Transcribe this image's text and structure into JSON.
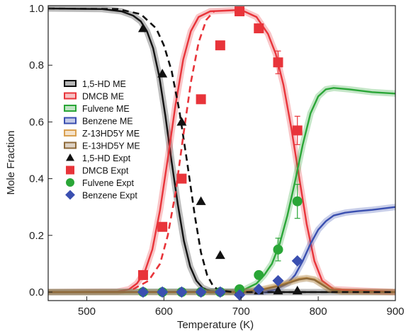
{
  "chart_data": {
    "type": "line",
    "xlabel": "Temperature (K)",
    "ylabel": "Mole Fraction",
    "xlim": [
      450,
      900
    ],
    "ylim": [
      -0.03,
      1.01
    ],
    "xticks": [
      500,
      600,
      700,
      800,
      900
    ],
    "yticks": [
      0.0,
      0.2,
      0.4,
      0.6,
      0.8,
      1.0
    ],
    "xtick_labels": [
      "500",
      "600",
      "700",
      "800",
      "900"
    ],
    "ytick_labels": [
      "0.0",
      "0.2",
      "0.4",
      "0.6",
      "0.8",
      "1.0"
    ],
    "grid": false,
    "legend_position": "left",
    "colors": {
      "hd": "#111111",
      "dmcb": "#e8343a",
      "fulvene": "#2aa637",
      "benzene": "#3a4fb0",
      "z13": "#d9a050",
      "e13": "#8e6a3a"
    },
    "series": [
      {
        "name": "1,5-HD ME",
        "kind": "band",
        "color_key": "hd",
        "x": [
          450,
          520,
          545,
          560,
          570,
          578,
          586,
          594,
          602,
          610,
          618,
          626,
          634,
          642,
          650,
          660,
          680,
          900
        ],
        "y": [
          1.0,
          0.998,
          0.99,
          0.975,
          0.955,
          0.92,
          0.86,
          0.76,
          0.62,
          0.46,
          0.31,
          0.18,
          0.09,
          0.04,
          0.015,
          0.004,
          0.0,
          0.0
        ]
      },
      {
        "name": "1,5-HD dashed",
        "kind": "dashed",
        "color_key": "hd",
        "x": [
          450,
          540,
          570,
          590,
          600,
          610,
          620,
          630,
          640,
          648,
          656,
          664,
          672,
          690,
          900
        ],
        "y": [
          1.0,
          0.998,
          0.98,
          0.93,
          0.87,
          0.78,
          0.64,
          0.46,
          0.27,
          0.14,
          0.06,
          0.02,
          0.006,
          0.0,
          0.0
        ]
      },
      {
        "name": "DMCB ME",
        "kind": "band",
        "color_key": "dmcb",
        "x": [
          450,
          540,
          555,
          565,
          575,
          585,
          595,
          605,
          615,
          625,
          635,
          645,
          660,
          700,
          720,
          735,
          745,
          755,
          765,
          775,
          785,
          795,
          805,
          820,
          900
        ],
        "y": [
          0.0,
          0.002,
          0.01,
          0.03,
          0.07,
          0.15,
          0.29,
          0.47,
          0.66,
          0.82,
          0.92,
          0.97,
          0.99,
          0.995,
          0.97,
          0.91,
          0.84,
          0.73,
          0.58,
          0.41,
          0.24,
          0.11,
          0.04,
          0.01,
          0.0
        ]
      },
      {
        "name": "DMCB dashed",
        "kind": "dashed",
        "color_key": "dmcb",
        "x": [
          560,
          580,
          595,
          605,
          615,
          625,
          635,
          645,
          655,
          665
        ],
        "y": [
          0.01,
          0.04,
          0.1,
          0.2,
          0.35,
          0.55,
          0.74,
          0.88,
          0.96,
          0.99
        ]
      },
      {
        "name": "Fulvene ME",
        "kind": "band",
        "color_key": "fulvene",
        "x": [
          450,
          690,
          705,
          720,
          730,
          740,
          750,
          760,
          770,
          780,
          790,
          800,
          810,
          820,
          840,
          870,
          900
        ],
        "y": [
          0.0,
          0.002,
          0.01,
          0.03,
          0.06,
          0.1,
          0.17,
          0.27,
          0.39,
          0.52,
          0.63,
          0.69,
          0.715,
          0.72,
          0.715,
          0.705,
          0.7
        ]
      },
      {
        "name": "Benzene ME",
        "kind": "band",
        "color_key": "benzene",
        "x": [
          450,
          730,
          745,
          760,
          770,
          780,
          790,
          800,
          810,
          820,
          835,
          850,
          870,
          900
        ],
        "y": [
          0.0,
          0.002,
          0.01,
          0.03,
          0.06,
          0.11,
          0.17,
          0.22,
          0.25,
          0.27,
          0.28,
          0.285,
          0.29,
          0.3
        ]
      },
      {
        "name": "Z-13HD5Y ME",
        "kind": "band",
        "color_key": "z13",
        "x": [
          450,
          690,
          710,
          730,
          750,
          765,
          775,
          785,
          795,
          805,
          815,
          830,
          900
        ],
        "y": [
          0.0,
          0.0,
          0.004,
          0.012,
          0.025,
          0.038,
          0.047,
          0.05,
          0.045,
          0.028,
          0.01,
          0.002,
          0.0
        ]
      },
      {
        "name": "E-13HD5Y ME",
        "kind": "band",
        "color_key": "e13",
        "x": [
          450,
          690,
          710,
          730,
          750,
          765,
          775,
          785,
          795,
          805,
          815,
          830,
          900
        ],
        "y": [
          0.0,
          0.0,
          0.003,
          0.01,
          0.022,
          0.035,
          0.044,
          0.048,
          0.043,
          0.026,
          0.009,
          0.002,
          0.0
        ]
      },
      {
        "name": "1,5-HD Expt",
        "kind": "points",
        "marker": "triangle",
        "color_key": "hd",
        "x": [
          573,
          598,
          623,
          648,
          673,
          698,
          723,
          748,
          773
        ],
        "y": [
          0.93,
          0.77,
          0.6,
          0.32,
          0.13,
          0.005,
          0.005,
          0.005,
          0.005
        ]
      },
      {
        "name": "DMCB Expt",
        "kind": "points",
        "marker": "square",
        "color_key": "dmcb",
        "x": [
          573,
          598,
          623,
          648,
          673,
          698,
          723,
          748,
          773
        ],
        "y": [
          0.06,
          0.23,
          0.4,
          0.68,
          0.87,
          0.99,
          0.93,
          0.81,
          0.57
        ],
        "err": [
          0,
          0,
          0,
          0,
          0,
          0,
          0,
          0.04,
          0.05
        ]
      },
      {
        "name": "Fulvene Expt",
        "kind": "points",
        "marker": "circle",
        "color_key": "fulvene",
        "x": [
          573,
          598,
          623,
          648,
          673,
          698,
          723,
          748,
          773
        ],
        "y": [
          0.0,
          0.0,
          0.0,
          0.0,
          0.0,
          0.01,
          0.06,
          0.15,
          0.32
        ],
        "err": [
          0,
          0,
          0,
          0,
          0,
          0,
          0.01,
          0.04,
          0.06
        ]
      },
      {
        "name": "Benzene Expt",
        "kind": "points",
        "marker": "diamond",
        "color_key": "benzene",
        "x": [
          573,
          598,
          623,
          648,
          673,
          698,
          723,
          748,
          773
        ],
        "y": [
          0.0,
          0.0,
          0.0,
          0.0,
          0.0,
          -0.01,
          0.01,
          0.04,
          0.11
        ]
      }
    ],
    "legend": [
      {
        "label": "1,5-HD ME",
        "style": "band",
        "color_key": "hd"
      },
      {
        "label": "DMCB ME",
        "style": "band",
        "color_key": "dmcb"
      },
      {
        "label": "Fulvene ME",
        "style": "band",
        "color_key": "fulvene"
      },
      {
        "label": "Benzene ME",
        "style": "band",
        "color_key": "benzene"
      },
      {
        "label": "Z-13HD5Y ME",
        "style": "band",
        "color_key": "z13"
      },
      {
        "label": "E-13HD5Y ME",
        "style": "band",
        "color_key": "e13"
      },
      {
        "label": "1,5-HD Expt",
        "style": "triangle",
        "color_key": "hd"
      },
      {
        "label": "DMCB Expt",
        "style": "square",
        "color_key": "dmcb"
      },
      {
        "label": "Fulvene Expt",
        "style": "circle",
        "color_key": "fulvene"
      },
      {
        "label": "Benzene Expt",
        "style": "diamond",
        "color_key": "benzene"
      }
    ]
  }
}
